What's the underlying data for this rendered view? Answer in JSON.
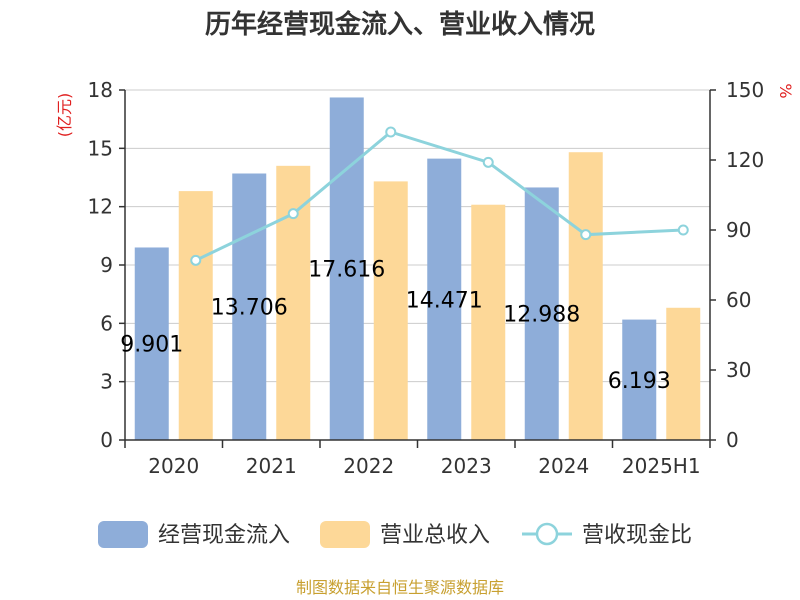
{
  "title": "历年经营现金流入、营业收入情况",
  "source": "制图数据来自恒生聚源数据库",
  "left_unit": "(亿元)",
  "right_unit": "%",
  "colors": {
    "inflow": "#8eadd9",
    "revenue": "#fdd898",
    "ratio": "#8dd3dc",
    "unit": "#e02020",
    "source": "#c8a030"
  },
  "chart_data": {
    "type": "bar",
    "categories": [
      "2020",
      "2021",
      "2022",
      "2023",
      "2024",
      "2025H1"
    ],
    "series": [
      {
        "name": "经营现金流入",
        "type": "bar",
        "axis": "left",
        "values": [
          9.901,
          13.706,
          17.616,
          14.471,
          12.988,
          6.193
        ],
        "labels": [
          "9.901",
          "13.706",
          "17.616",
          "14.471",
          "12.988",
          "6.193"
        ]
      },
      {
        "name": "营业总收入",
        "type": "bar",
        "axis": "left",
        "values": [
          12.8,
          14.1,
          13.3,
          12.1,
          14.8,
          6.8
        ]
      },
      {
        "name": "营收现金比",
        "type": "line",
        "axis": "right",
        "values": [
          77,
          97,
          132,
          119,
          88,
          90
        ]
      }
    ],
    "left_axis": {
      "min": 0,
      "max": 18,
      "ticks": [
        "0",
        "3",
        "6",
        "9",
        "12",
        "15",
        "18"
      ]
    },
    "right_axis": {
      "min": 0,
      "max": 150,
      "ticks": [
        "0",
        "30",
        "60",
        "90",
        "120",
        "150"
      ]
    },
    "grid": true,
    "legend_position": "bottom"
  }
}
